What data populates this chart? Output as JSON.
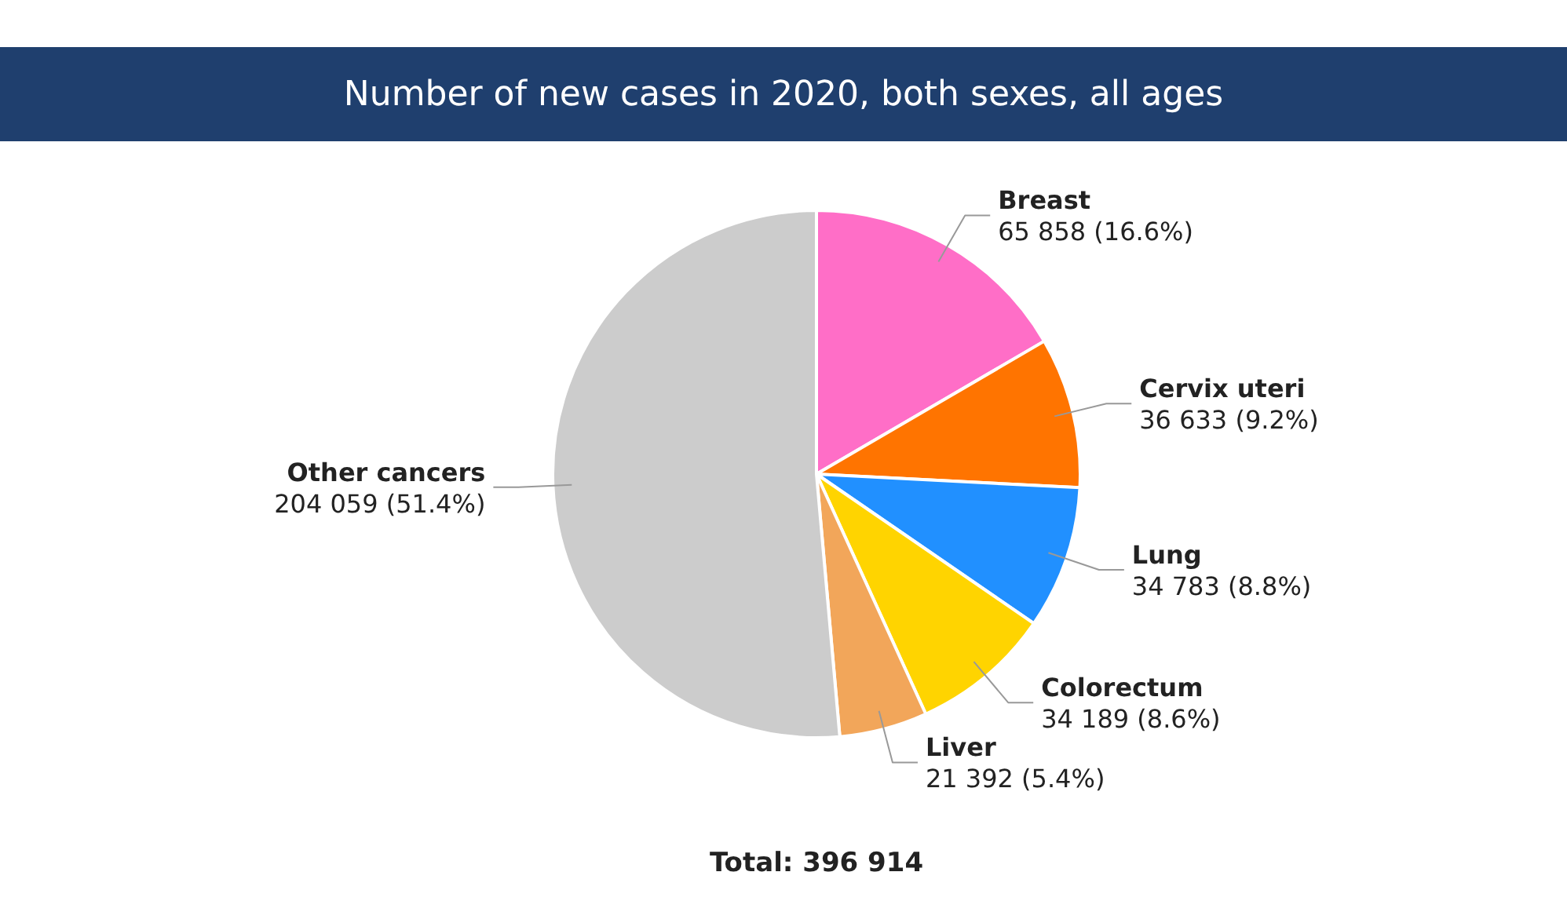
{
  "chart_data": {
    "type": "pie",
    "title": "Number of new cases in 2020, both sexes, all ages",
    "categories": [
      "Breast",
      "Cervix uteri",
      "Lung",
      "Colorectum",
      "Liver",
      "Other cancers"
    ],
    "values": [
      65858,
      36633,
      34783,
      34189,
      21392,
      204059
    ],
    "colors": [
      "#ff6ec7",
      "#ff7400",
      "#2190ff",
      "#ffd400",
      "#f2a65a",
      "#cccccc"
    ],
    "value_labels": [
      "65 858 (16.6%)",
      "36 633 (9.2%)",
      "34 783 (8.8%)",
      "34 189 (8.6%)",
      "21 392 (5.4%)",
      "204 059 (51.4%)"
    ],
    "annotations": [
      "Total: 396 914"
    ]
  }
}
